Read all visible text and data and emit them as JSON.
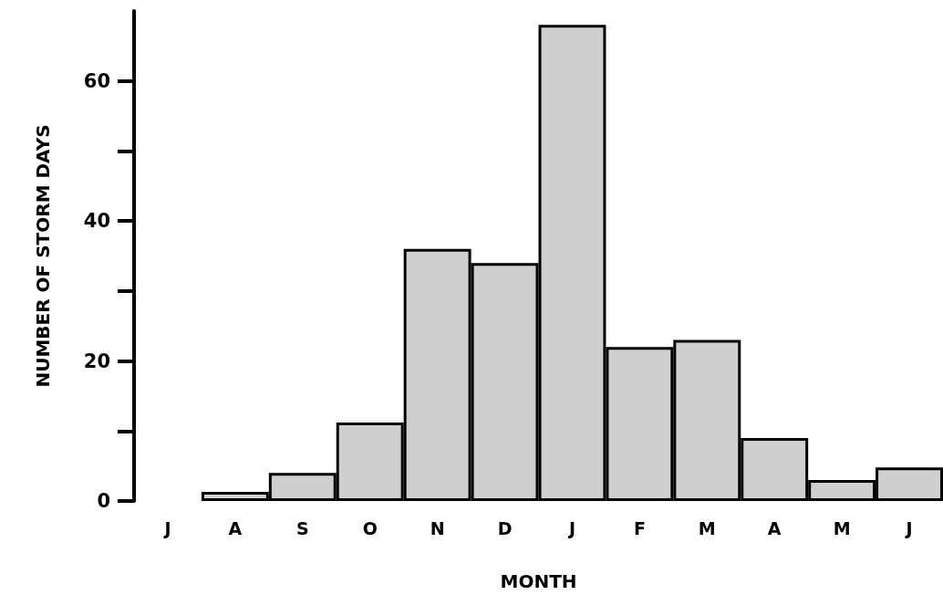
{
  "chart_data": {
    "type": "bar",
    "xlabel": "MONTH",
    "ylabel": "NUMBER OF STORM DAYS",
    "categories": [
      "J",
      "A",
      "S",
      "O",
      "N",
      "D",
      "J",
      "F",
      "M",
      "A",
      "M",
      "J"
    ],
    "values": [
      0,
      1.3,
      4,
      11.2,
      36,
      34,
      68,
      22,
      23,
      9,
      3,
      4.8
    ],
    "color": "#cfcfcf",
    "ylim": [
      0,
      70
    ],
    "yticks": [
      0,
      20,
      40,
      60
    ],
    "grid": false
  }
}
